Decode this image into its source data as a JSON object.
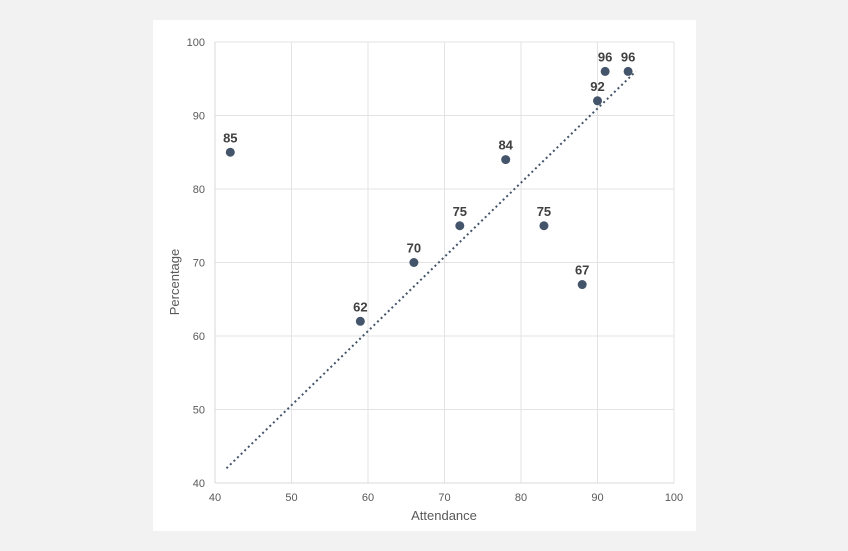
{
  "chart_data": {
    "type": "scatter",
    "title": "",
    "xlabel": "Attendance",
    "ylabel": "Percentage",
    "xlim": [
      40,
      100
    ],
    "ylim": [
      40,
      100
    ],
    "x_ticks": [
      40,
      50,
      60,
      70,
      80,
      90,
      100
    ],
    "y_ticks": [
      40,
      50,
      60,
      70,
      80,
      90,
      100
    ],
    "grid": true,
    "legend": "none",
    "points": [
      {
        "x": 42,
        "y": 85,
        "label": "85"
      },
      {
        "x": 59,
        "y": 62,
        "label": "62"
      },
      {
        "x": 66,
        "y": 70,
        "label": "70"
      },
      {
        "x": 72,
        "y": 75,
        "label": "75"
      },
      {
        "x": 78,
        "y": 84,
        "label": "84"
      },
      {
        "x": 83,
        "y": 75,
        "label": "75"
      },
      {
        "x": 88,
        "y": 67,
        "label": "67"
      },
      {
        "x": 90,
        "y": 92,
        "label": "92"
      },
      {
        "x": 91,
        "y": 96,
        "label": "96"
      },
      {
        "x": 94,
        "y": 96,
        "label": "96"
      }
    ],
    "trendline": {
      "style": "dotted",
      "from": {
        "x": 41.5,
        "y": 42
      },
      "to": {
        "x": 95,
        "y": 96
      }
    },
    "colors": {
      "marker": "#44546a",
      "trendline": "#44546a",
      "grid": "#e3e3e3",
      "axis": "#d9d9d9",
      "background": "#ffffff",
      "page": "#f2f2f2"
    }
  }
}
